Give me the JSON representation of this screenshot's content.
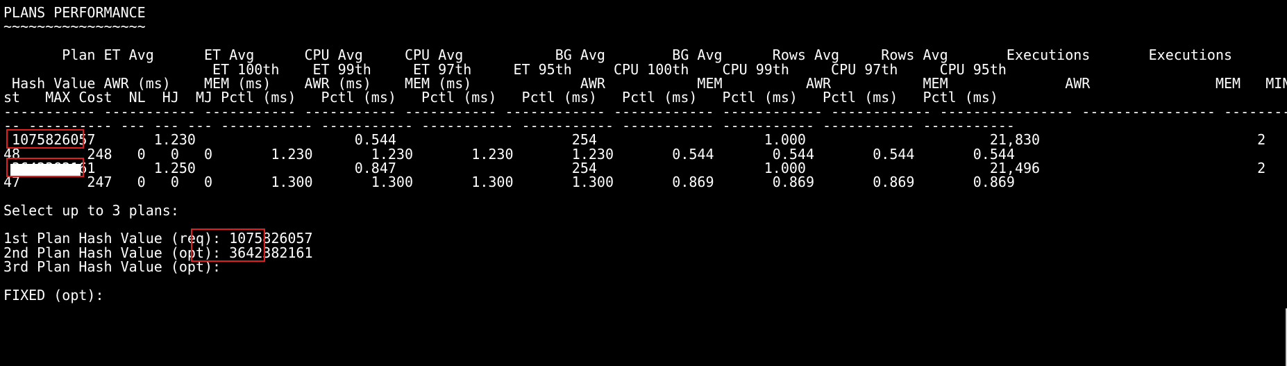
{
  "terminal": {
    "background": "#000000",
    "foreground": "#ffffff",
    "highlight_color": "#e02020",
    "lines": [
      "PLANS PERFORMANCE",
      "~~~~~~~~~~~~~~~~~",
      "",
      "       Plan ET Avg      ET Avg      CPU Avg     CPU Avg           BG Avg        BG Avg      Rows Avg     Rows Avg       Executions       Executions",
      " Hash Value AWR (ms)    MEM (ms)    AWR (ms)    MEM (ms)             AWR           MEM          AWR           MEM              AWR               MEM   MIN Co",
      "st   MAX Cost  NL  HJ  MJ Pctl (ms)   Pctl (ms)   Pctl (ms)   Pctl (ms)   Pctl (ms)   Pctl (ms)   Pctl (ms)   Pctl (ms)",
      "----------- ----------- ----------- ----------- ----------- ------------ ------------ ------------ ------------ ---------------- ---------------- --------",
      "-- ---------- --- --- --- ----------- ----------- ----------- ----------- ----------- ----------- ----------- -----------",
      " 1075826057       1.230                   0.544                     254                    1.000                      21,830                          2",
      "48        248   0   0   0       1.230       1.230       1.230       1.230       0.544       0.544       0.544       0.544",
      " 3642382161       1.250                   0.847                     254                    1.000                      21,496                          2",
      "47        247   0   0   0       1.300       1.300       1.300       1.300       0.869       0.869       0.869       0.869",
      "",
      "Select up to 3 plans:",
      "",
      "1st Plan Hash Value (req): 1075826057",
      "2nd Plan Hash Value (opt): 3642382161",
      "3rd Plan Hash Value (opt):",
      "",
      "FIXED (opt):"
    ],
    "overlay_line": "                         ET 100th    ET 99th     ET 97th     ET 95th     CPU 100th    CPU 99th     CPU 97th     CPU 95th"
  }
}
